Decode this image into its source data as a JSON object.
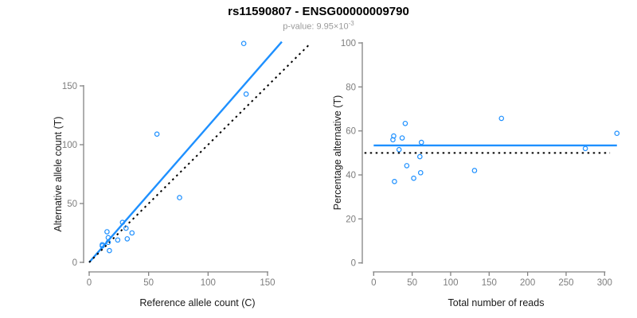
{
  "header": {
    "title": "rs11590807 - ENSG00000009790",
    "pvalue_text": "p-value: 9.95×10",
    "pvalue_exponent": "-3"
  },
  "colors": {
    "accent_blue": "#1E90FF",
    "dotted_black": "#000000",
    "axis_gray": "#828282",
    "tick_label_gray": "#7d7d7d",
    "title_black": "#000000",
    "subtitle_gray": "#9a9a9a"
  },
  "chart_data": [
    {
      "type": "scatter",
      "title": "rs11590807 - ENSG00000009790",
      "subtitle": "p-value: 9.95×10^-3",
      "xlabel": "Reference allele count (C)",
      "ylabel": "Alternative allele count (T)",
      "xticks": [
        0,
        50,
        100,
        150
      ],
      "yticks": [
        0,
        50,
        100,
        150
      ],
      "xlim": [
        -5,
        186
      ],
      "ylim": [
        -5,
        190
      ],
      "grid": false,
      "legend": "none",
      "points": [
        [
          11,
          14
        ],
        [
          11,
          15
        ],
        [
          15,
          26
        ],
        [
          16,
          17
        ],
        [
          16,
          21
        ],
        [
          17,
          10
        ],
        [
          24,
          19
        ],
        [
          28,
          34
        ],
        [
          31,
          29
        ],
        [
          32,
          20
        ],
        [
          36,
          25
        ],
        [
          57,
          109
        ],
        [
          76,
          55
        ],
        [
          130,
          186
        ],
        [
          132,
          143
        ]
      ],
      "solid_line": {
        "slope": 1.157,
        "intercept": 0,
        "x_start": 0,
        "x_end": 162,
        "style": "solid",
        "color": "#1E90FF"
      },
      "dotted_line": {
        "slope": 1,
        "intercept": 0,
        "x_start": 0,
        "x_end": 185,
        "style": "dotted",
        "color": "#000000"
      }
    },
    {
      "type": "scatter",
      "xlabel": "Total number of reads",
      "ylabel": "Percentage alternative (T)",
      "xticks": [
        0,
        50,
        100,
        150,
        200,
        250,
        300
      ],
      "yticks": [
        0,
        20,
        40,
        60,
        80,
        100
      ],
      "xlim": [
        -13,
        320
      ],
      "ylim": [
        0,
        100
      ],
      "grid": false,
      "legend": "none",
      "points": [
        [
          25,
          56.0
        ],
        [
          26,
          57.7
        ],
        [
          27,
          37.0
        ],
        [
          33,
          51.5
        ],
        [
          37,
          56.8
        ],
        [
          41,
          63.4
        ],
        [
          43,
          44.2
        ],
        [
          52,
          38.5
        ],
        [
          60,
          48.3
        ],
        [
          61,
          41.0
        ],
        [
          62,
          54.8
        ],
        [
          131,
          42.0
        ],
        [
          166,
          65.7
        ],
        [
          275,
          52.0
        ],
        [
          316,
          58.9
        ]
      ],
      "solid_line": {
        "y": 53.4,
        "x_start": 0,
        "x_end": 316,
        "style": "solid",
        "color": "#1E90FF"
      },
      "dotted_line": {
        "y": 50,
        "x_start": -12,
        "x_end": 307,
        "style": "dotted",
        "color": "#000000"
      }
    }
  ]
}
